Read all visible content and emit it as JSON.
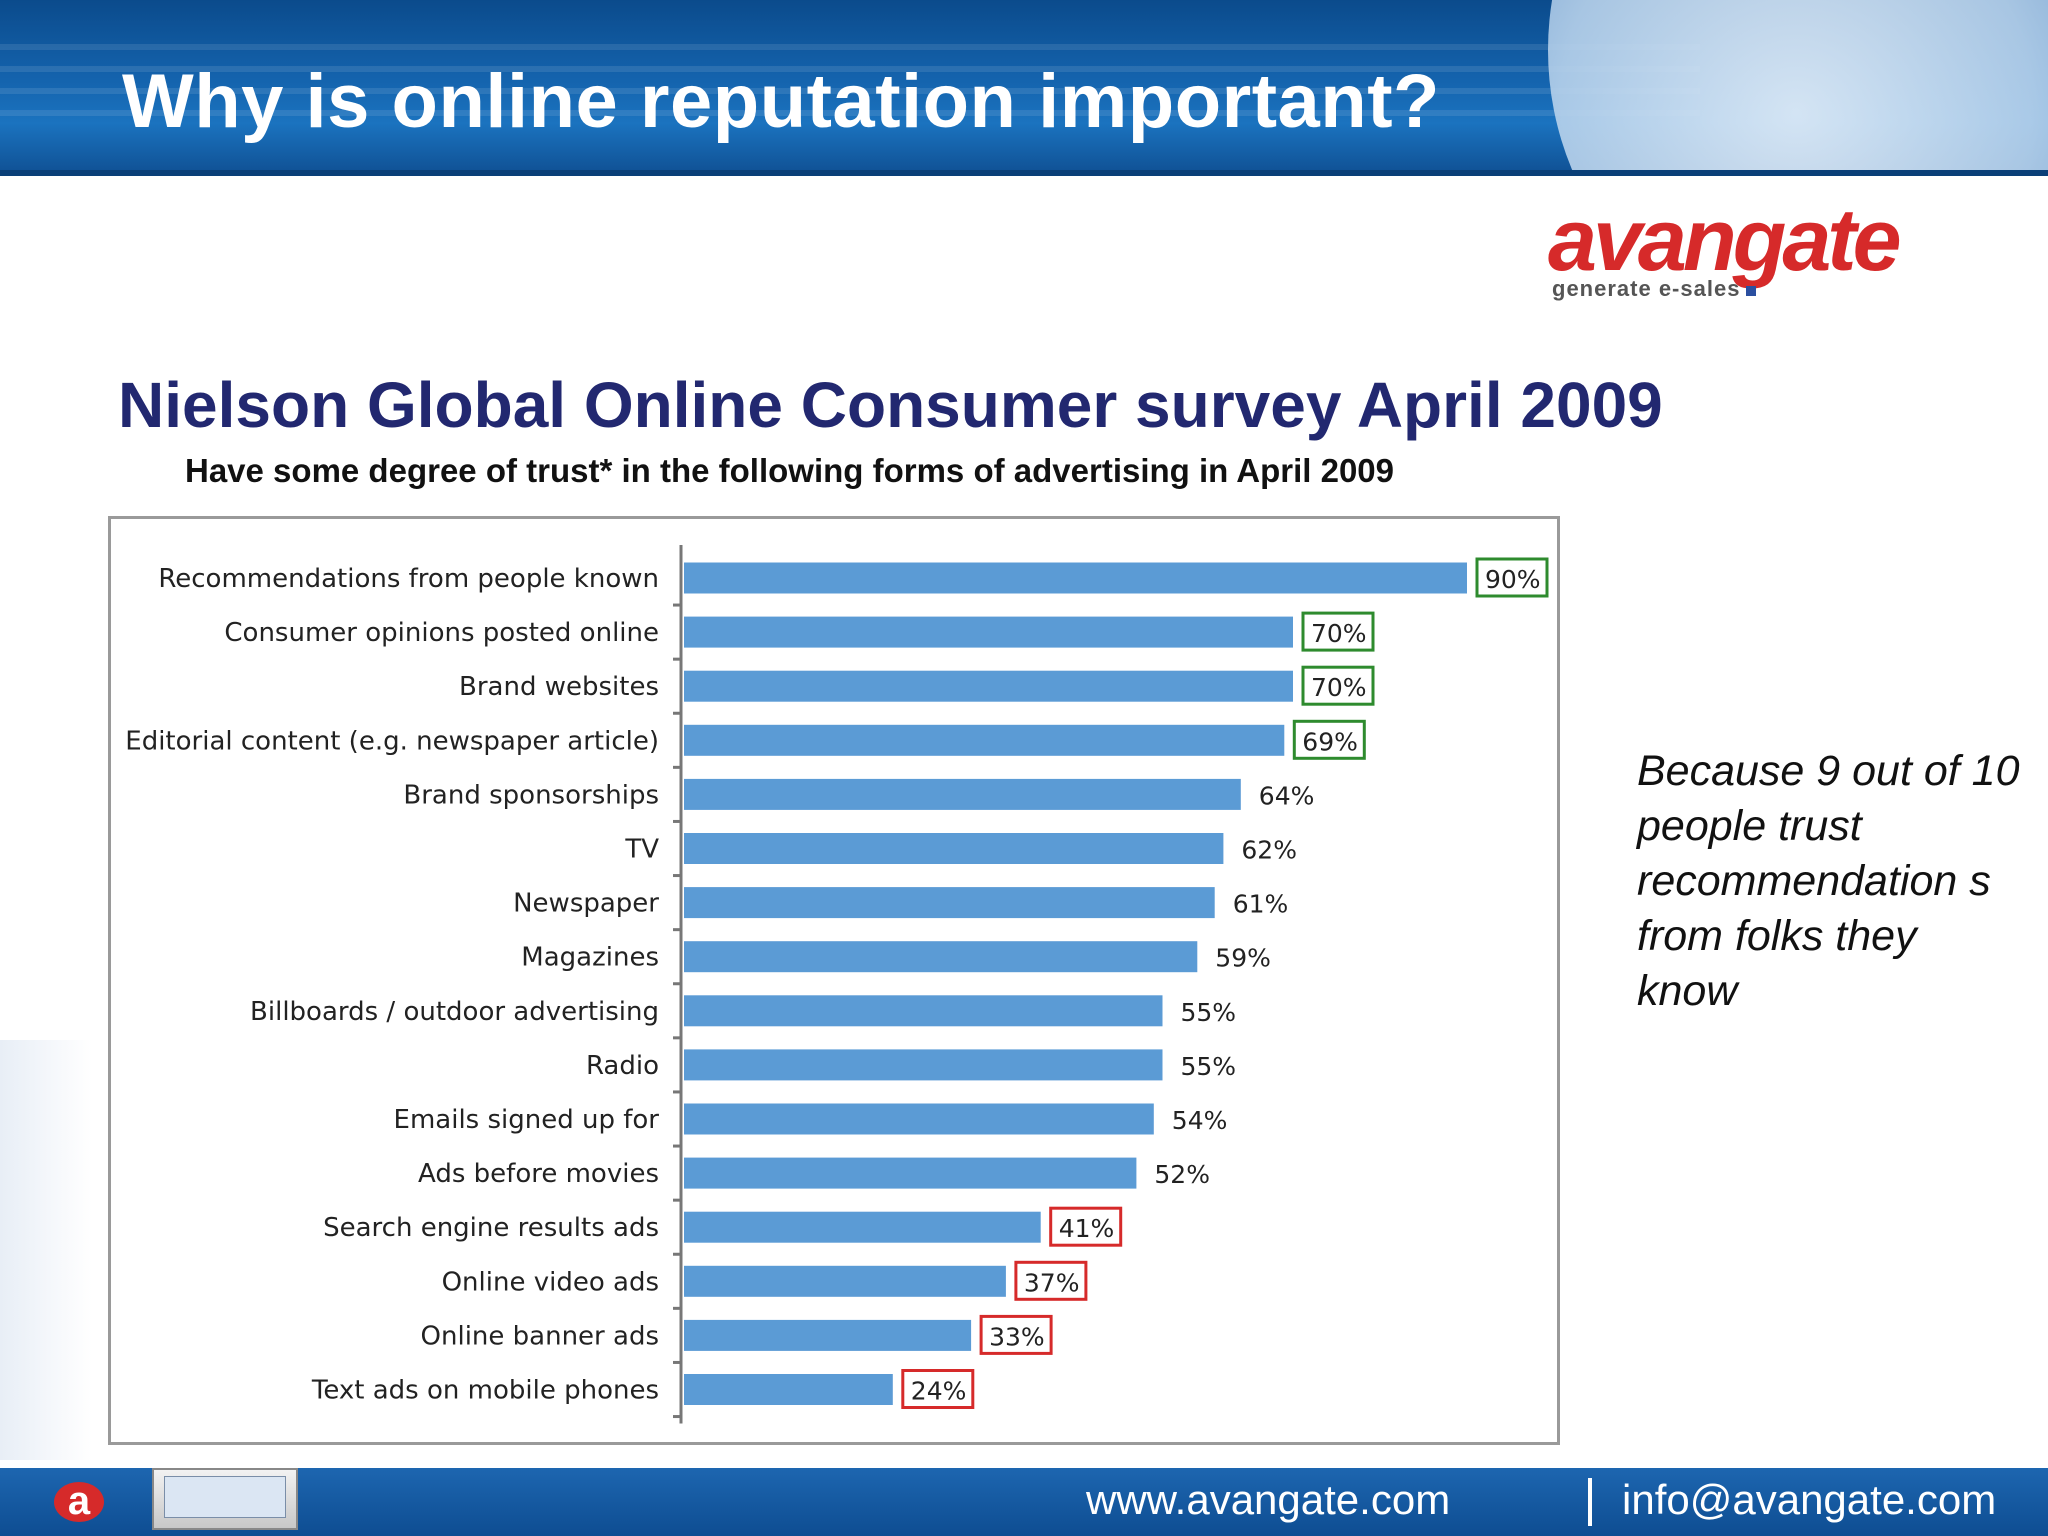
{
  "slide": {
    "title": "Why is online reputation important?",
    "subtitle": "Nielson Global Online Consumer survey April 2009",
    "side_note": "Because 9 out of 10 people trust recommendation s from folks they know"
  },
  "logo": {
    "word": "avangate",
    "tagline": "generate e-sales"
  },
  "footer": {
    "url": "www.avangate.com",
    "email": "info@avangate.com"
  },
  "colors": {
    "bar": "#5b9bd5",
    "green_box": "#2e8b2e",
    "red_box": "#d62a2a",
    "title_blue": "#222870"
  },
  "chart_data": {
    "type": "bar",
    "orientation": "horizontal",
    "title": "Have some degree of trust* in the following forms of advertising in April 2009",
    "xlabel": "",
    "ylabel": "",
    "xlim": [
      0,
      100
    ],
    "grid": false,
    "legend": "none",
    "categories": [
      "Recommendations from people known",
      "Consumer opinions posted online",
      "Brand websites",
      "Editorial content (e.g. newspaper article)",
      "Brand sponsorships",
      "TV",
      "Newspaper",
      "Magazines",
      "Billboards / outdoor advertising",
      "Radio",
      "Emails signed up for",
      "Ads before movies",
      "Search engine results ads",
      "Online video ads",
      "Online banner ads",
      "Text ads on mobile phones"
    ],
    "values": [
      90,
      70,
      70,
      69,
      64,
      62,
      61,
      59,
      55,
      55,
      54,
      52,
      41,
      37,
      33,
      24
    ],
    "labels": [
      "90%",
      "70%",
      "70%",
      "69%",
      "64%",
      "62%",
      "61%",
      "59%",
      "55%",
      "55%",
      "54%",
      "52%",
      "41%",
      "37%",
      "33%",
      "24%"
    ],
    "highlight": [
      "green",
      "green",
      "green",
      "green",
      "none",
      "none",
      "none",
      "none",
      "none",
      "none",
      "none",
      "none",
      "red",
      "red",
      "red",
      "red"
    ]
  }
}
